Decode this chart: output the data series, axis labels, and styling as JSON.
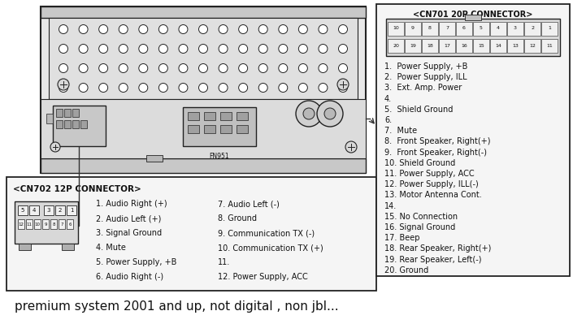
{
  "bg_color": "#ffffff",
  "title_text": "premium system 2001 and up, not digital , non jbl...",
  "cn701_title": "<CN701 20P CONNECTOR>",
  "cn702_title": "<CN702 12P CONNECTOR>",
  "cn701_pins": [
    "1.  Power Supply, +B",
    "2.  Power Supply, ILL",
    "3.  Ext. Amp. Power",
    "4.",
    "5.  Shield Ground",
    "6.",
    "7.  Mute",
    "8.  Front Speaker, Right(+)",
    "9.  Front Speaker, Right(-)",
    "10. Shield Ground",
    "11. Power Supply, ACC",
    "12. Power Supply, ILL(-)",
    "13. Motor Antenna Cont.",
    "14.",
    "15. No Connection",
    "16. Signal Ground",
    "17. Beep",
    "18. Rear Speaker, Right(+)",
    "19. Rear Speaker, Left(-)",
    "20. Ground"
  ],
  "cn702_col1": [
    "1. Audio Right (+)",
    "2. Audio Left (+)",
    "3. Signal Ground",
    "4. Mute",
    "5. Power Supply, +B",
    "6. Audio Right (-)"
  ],
  "cn702_col2": [
    "7. Audio Left (-)",
    "8. Ground",
    "9. Communication TX (-)",
    "10. Communication TX (+)",
    "11.",
    "12. Power Supply, ACC"
  ],
  "border_color": "#222222",
  "text_color": "#111111",
  "line_color": "#333333",
  "unit_face": "#e8e8e8",
  "unit_strip": "#c8c8c8",
  "conn_face": "#d0d0d0",
  "dot_color": "#aaaaaa",
  "box_face": "#f5f5f5"
}
